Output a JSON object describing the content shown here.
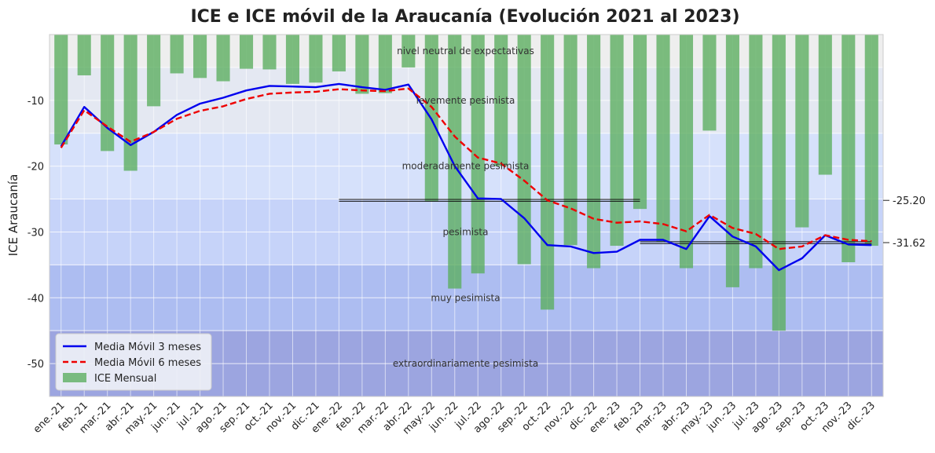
{
  "chart_data": {
    "type": "bar",
    "title": "ICE e ICE móvil de la Araucanía (Evolución 2021 al 2023)",
    "xlabel": "",
    "ylabel": "ICE Araucanía",
    "ylim": [
      -55,
      0
    ],
    "yticks": [
      -10,
      -20,
      -30,
      -40,
      -50
    ],
    "grid": true,
    "legend_position": "bottom-left",
    "categories": [
      "ene.-21",
      "feb.-21",
      "mar.-21",
      "abr.-21",
      "may.-21",
      "jun.-21",
      "jul.-21",
      "ago.-21",
      "sep.-21",
      "oct.-21",
      "nov.-21",
      "dic.-21",
      "ene.-22",
      "feb.-22",
      "mar.-22",
      "abr.-22",
      "may.-22",
      "jun.-22",
      "jul.-22",
      "ago.-22",
      "sep.-22",
      "oct.-22",
      "nov.-22",
      "dic.-22",
      "ene.-23",
      "feb.-23",
      "mar.-23",
      "abr.-23",
      "may.-23",
      "jun.-23",
      "jul.-23",
      "ago.-23",
      "sep.-23",
      "oct.-23",
      "nov.-23",
      "dic.-23"
    ],
    "series": [
      {
        "name": "Media Móvil 3 meses",
        "kind": "line",
        "color": "#0000ee",
        "dash": "solid",
        "values": [
          -17.0,
          -11.0,
          -14.2,
          -16.8,
          -14.8,
          -12.2,
          -10.5,
          -9.6,
          -8.5,
          -7.8,
          -7.9,
          -8.0,
          -7.5,
          -8.0,
          -8.4,
          -7.6,
          -12.9,
          -20.0,
          -24.9,
          -25.0,
          -27.9,
          -32.0,
          -32.2,
          -33.2,
          -33.0,
          -31.2,
          -31.2,
          -32.6,
          -27.6,
          -30.7,
          -32.2,
          -35.8,
          -34.0,
          -30.5,
          -31.9,
          -32.0
        ]
      },
      {
        "name": "Media Móvil 6 meses",
        "kind": "line",
        "color": "#ee0000",
        "dash": "dashed",
        "values": [
          -17.2,
          -11.5,
          -14.0,
          -16.3,
          -14.8,
          -12.8,
          -11.6,
          -10.9,
          -9.8,
          -9.0,
          -8.8,
          -8.7,
          -8.3,
          -8.5,
          -8.6,
          -8.2,
          -11.0,
          -15.5,
          -18.7,
          -19.6,
          -22.2,
          -25.2,
          -26.4,
          -28.0,
          -28.6,
          -28.4,
          -28.8,
          -29.9,
          -27.4,
          -29.4,
          -30.3,
          -32.6,
          -32.2,
          -30.5,
          -31.2,
          -31.4
        ]
      },
      {
        "name": "ICE Mensual",
        "kind": "bar",
        "color": "#5aad5e",
        "values": [
          -16.7,
          -6.2,
          -17.7,
          -20.7,
          -10.9,
          -5.9,
          -6.6,
          -7.1,
          -5.2,
          -5.3,
          -7.5,
          -7.3,
          -5.6,
          -9.0,
          -8.9,
          -5.0,
          -25.4,
          -38.6,
          -36.3,
          -20.0,
          -34.9,
          -41.8,
          -32.0,
          -35.5,
          -32.1,
          -26.5,
          -31.5,
          -35.5,
          -14.6,
          -38.4,
          -35.5,
          -45.0,
          -29.3,
          -21.3,
          -34.6,
          -32.1
        ]
      }
    ],
    "bands": [
      {
        "label": "nivel neutral de expectativas",
        "from": 0,
        "to": -5,
        "color": "#eeeeee"
      },
      {
        "label": "levemente pesimista",
        "from": -5,
        "to": -15,
        "color": "#e4e8f2"
      },
      {
        "label": "moderadamente pesimista",
        "from": -15,
        "to": -25,
        "color": "#d6e1fb"
      },
      {
        "label": "pesimista",
        "from": -25,
        "to": -35,
        "color": "#c6d3f9"
      },
      {
        "label": "muy pesimista",
        "from": -35,
        "to": -45,
        "color": "#adbdf1"
      },
      {
        "label": "extraordinariamente pesimista",
        "from": -45,
        "to": -55,
        "color": "#9ca5e0"
      }
    ],
    "reference_lines": [
      {
        "label": "-25.20",
        "value": -25.2,
        "from_category": "ene.-22",
        "to_category": "feb.-23"
      },
      {
        "label": "-31.62",
        "value": -31.62,
        "from_category": "feb.-23",
        "to_category": "dic.-23"
      }
    ]
  }
}
